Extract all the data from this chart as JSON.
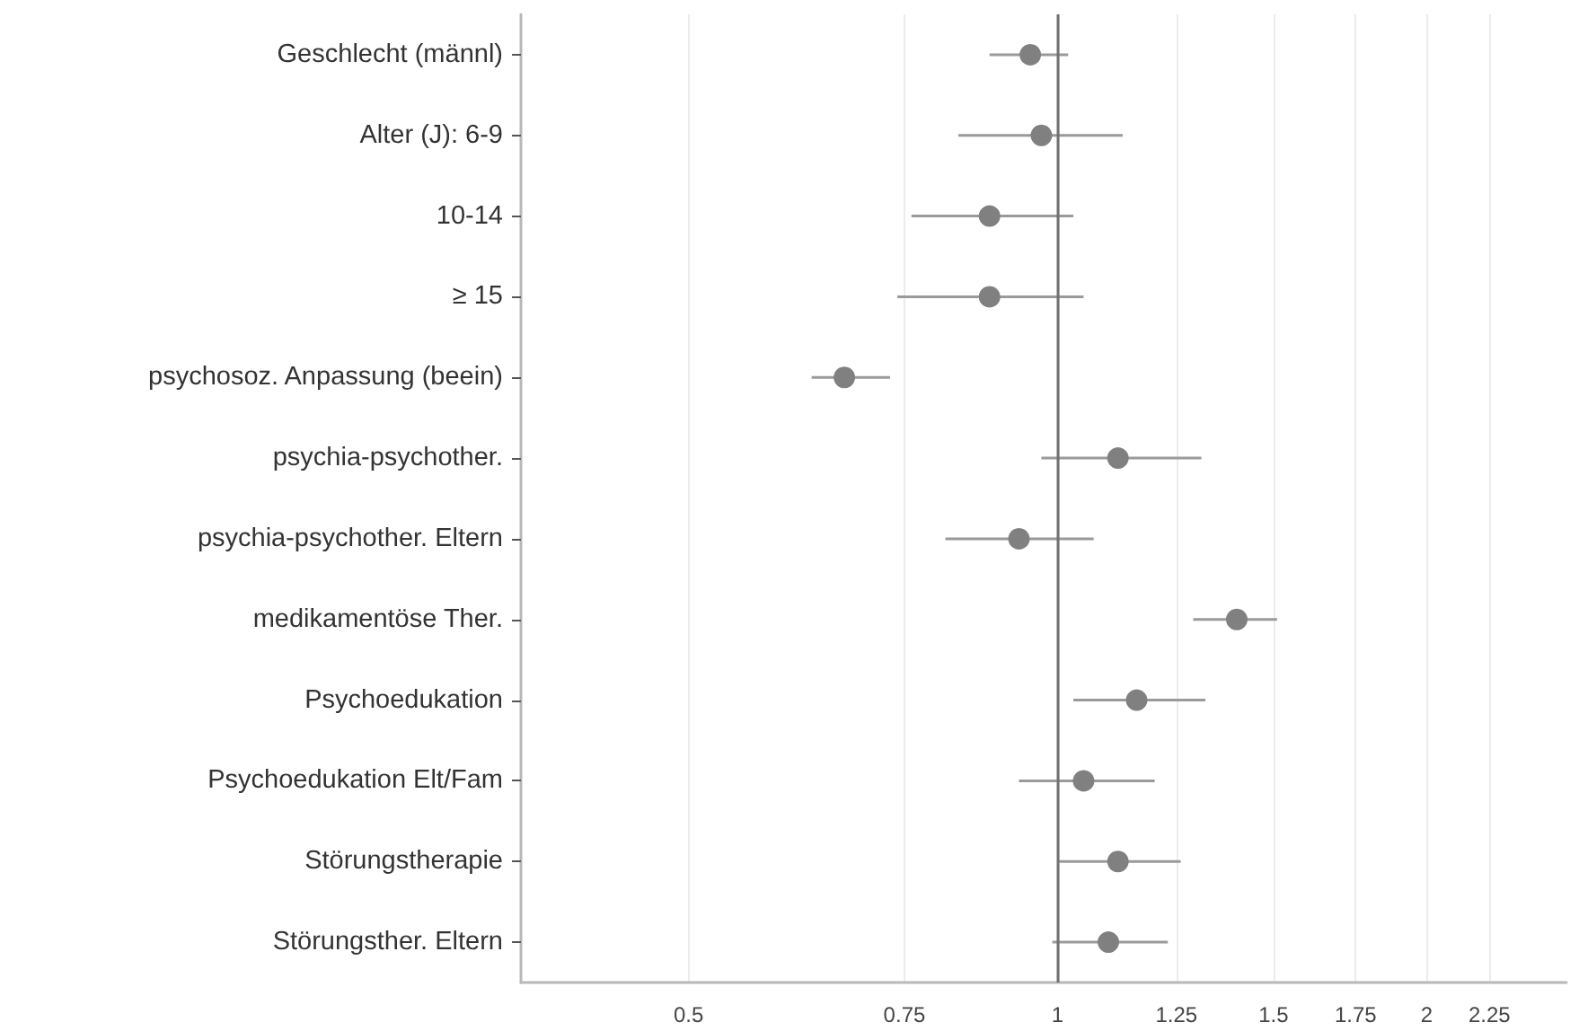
{
  "chart_data": {
    "type": "scatter",
    "orientation": "horizontal",
    "categories": [
      "Geschlecht (männl)",
      "Alter (J): 6-9",
      "10-14",
      "≥ 15",
      "psychosoz. Anpassung (beein)",
      "psychia-psychother.",
      "psychia-psychother. Eltern",
      "medikamentöse Ther.",
      "Psychoedukation",
      "Psychoedukation Elt/Fam",
      "Störungstherapie",
      "Störungsther. Eltern"
    ],
    "values": [
      0.95,
      0.97,
      0.88,
      0.88,
      0.67,
      1.12,
      0.93,
      1.4,
      1.16,
      1.05,
      1.12,
      1.1
    ],
    "errors": [
      [
        0.88,
        1.02
      ],
      [
        0.83,
        1.13
      ],
      [
        0.76,
        1.03
      ],
      [
        0.74,
        1.05
      ],
      [
        0.63,
        0.73
      ],
      [
        0.97,
        1.31
      ],
      [
        0.81,
        1.07
      ],
      [
        1.29,
        1.51
      ],
      [
        1.03,
        1.32
      ],
      [
        0.93,
        1.2
      ],
      [
        1.0,
        1.26
      ],
      [
        0.99,
        1.23
      ]
    ],
    "color": "#808080",
    "marker": "circle",
    "log": "x",
    "xlim": [
      0.365,
      2.6
    ],
    "xticks": [
      0.5,
      0.75,
      1,
      1.25,
      1.5,
      1.75,
      2,
      2.25
    ],
    "grid": "x",
    "ref_lines": [
      {
        "axis": "x",
        "value": 1,
        "color": "#707070"
      }
    ]
  }
}
